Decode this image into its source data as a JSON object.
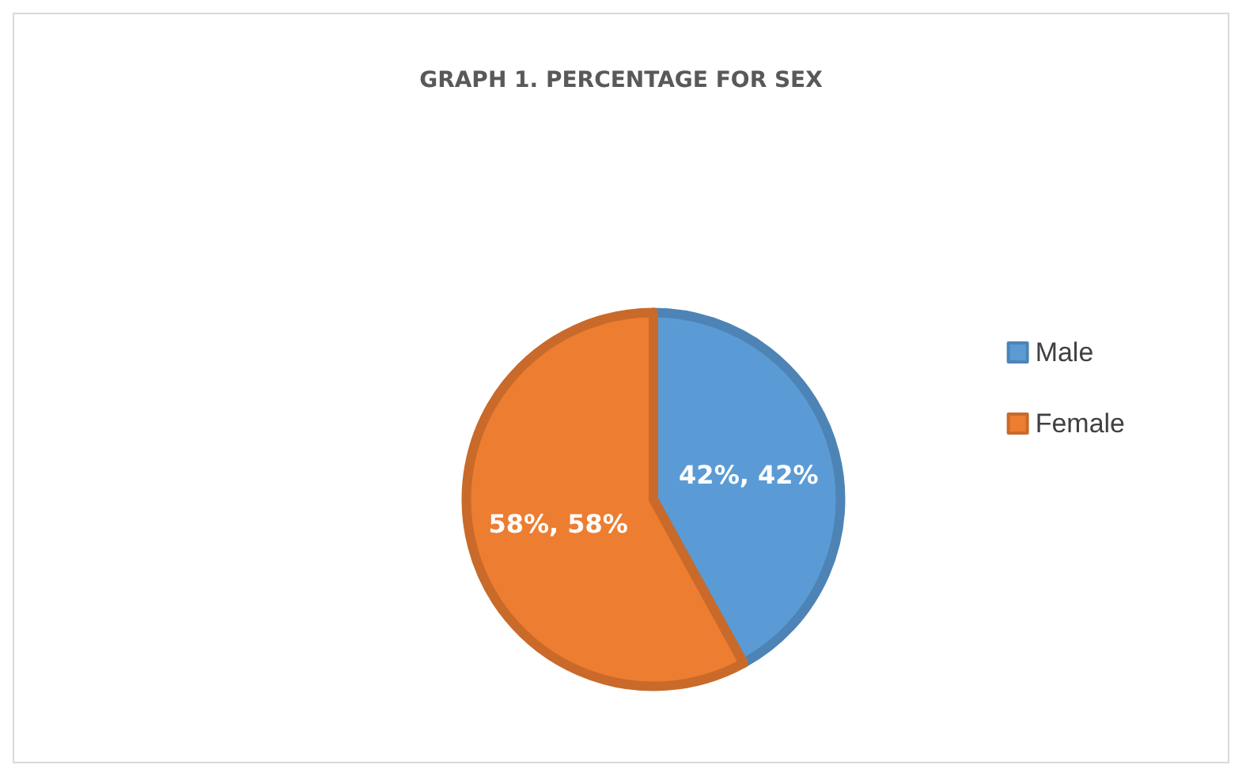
{
  "chart_data": {
    "type": "pie",
    "title": "GRAPH 1. PERCENTAGE FOR SEX",
    "categories": [
      "Male",
      "Female"
    ],
    "values": [
      42,
      58
    ],
    "colors": [
      "#5b9bd5",
      "#ed7d31"
    ],
    "value_labels": [
      "42%, 42%",
      "58%, 58%"
    ],
    "legend": "right"
  }
}
